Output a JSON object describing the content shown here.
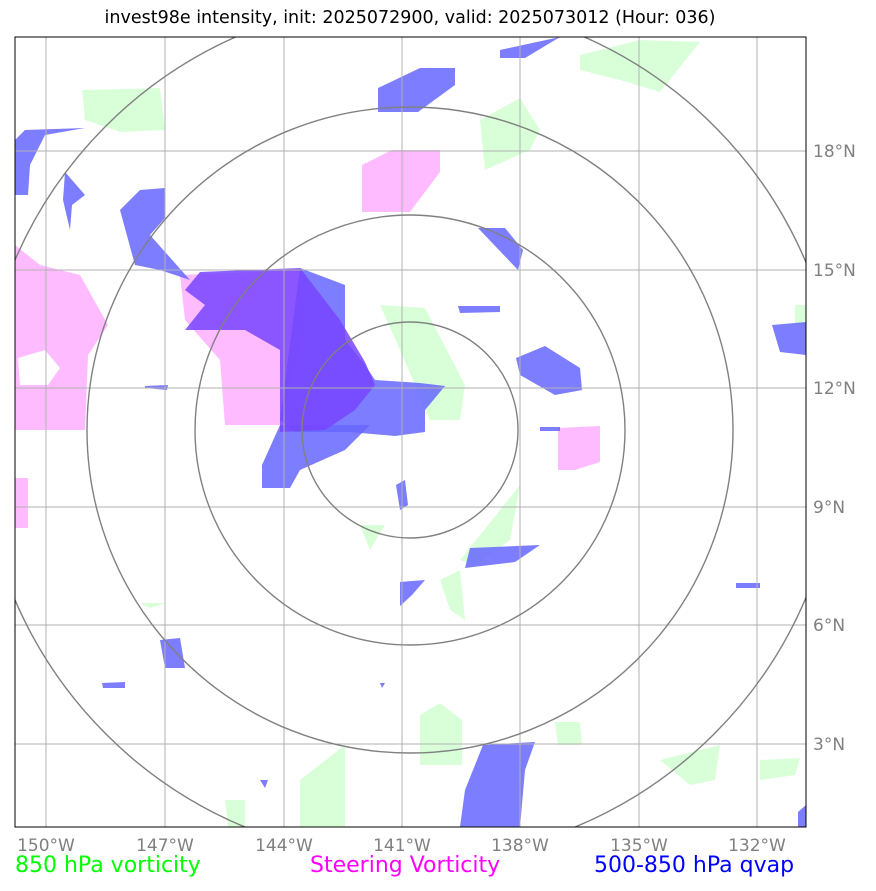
{
  "title": "invest98e intensity, init: 2025072900, valid: 2025073012 (Hour: 036)",
  "map": {
    "lon_labels": [
      "150°W",
      "147°W",
      "144°W",
      "141°W",
      "138°W",
      "135°W",
      "132°W"
    ],
    "lat_labels": [
      "18°N",
      "15°N",
      "12°N",
      "9°N",
      "6°N",
      "3°N"
    ],
    "range_rings_count": 4,
    "center": {
      "lon": "141°W",
      "lat": "11°N"
    }
  },
  "legend": {
    "vorticity_850": "850 hPa vorticity",
    "steering_vorticity": "Steering Vorticity",
    "qvap": "500-850 hPa qvap"
  },
  "colors": {
    "green_fill": "#ccffcc",
    "magenta_fill": "#ffaaff",
    "blue_fill": "#6666ff",
    "purple_overlap": "#7744ff",
    "grid": "#b0b0b0",
    "rings": "#808080"
  }
}
